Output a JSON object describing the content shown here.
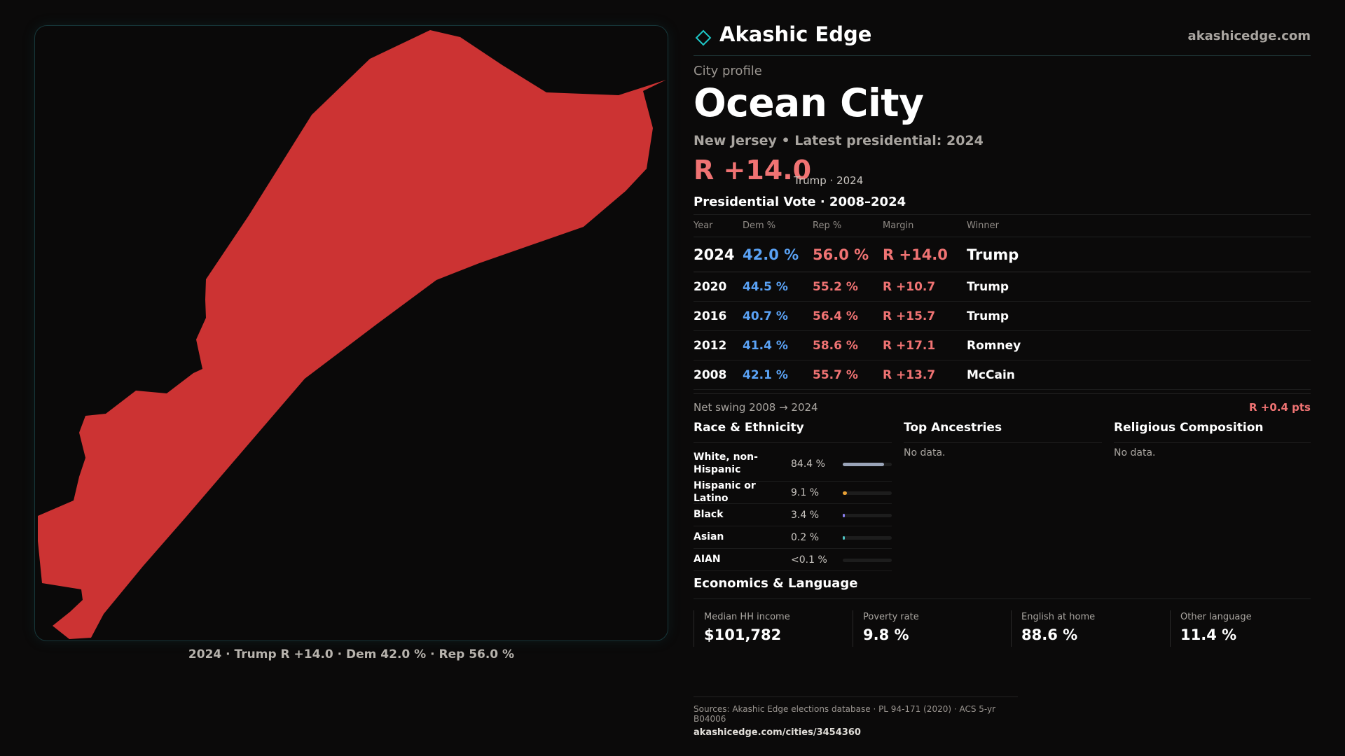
{
  "brand": {
    "name": "Akashic Edge",
    "domain": "akashicedge.com",
    "accent": "#1ec8c8"
  },
  "profile": {
    "eyebrow": "City profile",
    "city": "Ocean City",
    "subtitle": "New Jersey • Latest presidential: 2024",
    "headline_margin": "R +14.0",
    "headline_note": "Trump · 2024"
  },
  "map": {
    "fill": "#cc3333",
    "caption": "2024 · Trump R +14.0 · Dem 42.0 % · Rep 56.0 %"
  },
  "vote": {
    "title": "Presidential Vote · 2008–2024",
    "headers": {
      "year": "Year",
      "dem": "Dem %",
      "rep": "Rep %",
      "margin": "Margin",
      "winner": "Winner"
    },
    "rows": [
      {
        "year": "2024",
        "dem": "42.0 %",
        "rep": "56.0 %",
        "margin": "R +14.0",
        "winner": "Trump"
      },
      {
        "year": "2020",
        "dem": "44.5 %",
        "rep": "55.2 %",
        "margin": "R +10.7",
        "winner": "Trump"
      },
      {
        "year": "2016",
        "dem": "40.7 %",
        "rep": "56.4 %",
        "margin": "R +15.7",
        "winner": "Trump"
      },
      {
        "year": "2012",
        "dem": "41.4 %",
        "rep": "58.6 %",
        "margin": "R +17.1",
        "winner": "Romney"
      },
      {
        "year": "2008",
        "dem": "42.1 %",
        "rep": "55.7 %",
        "margin": "R +13.7",
        "winner": "McCain"
      }
    ],
    "swing_label": "Net swing 2008 → 2024",
    "swing_value": "R +0.4 pts"
  },
  "race": {
    "title": "Race & Ethnicity",
    "rows": [
      {
        "label": "White, non-Hispanic",
        "pct": "84.4 %",
        "share": 0.844,
        "color": "#9aa4b8"
      },
      {
        "label": "Hispanic or Latino",
        "pct": "9.1 %",
        "share": 0.091,
        "color": "#e8a035"
      },
      {
        "label": "Black",
        "pct": "3.4 %",
        "share": 0.034,
        "color": "#8a7ff0"
      },
      {
        "label": "Asian",
        "pct": "0.2 %",
        "share": 0.002,
        "color": "#4fc3c3"
      },
      {
        "label": "AIAN",
        "pct": "<0.1 %",
        "share": 0.0,
        "color": "#7fbf6a"
      }
    ]
  },
  "ancestries": {
    "title": "Top Ancestries",
    "empty": "No data."
  },
  "religion": {
    "title": "Religious Composition",
    "empty": "No data."
  },
  "economics": {
    "title": "Economics & Language",
    "items": [
      {
        "label": "Median HH income",
        "value": "$101,782"
      },
      {
        "label": "Poverty rate",
        "value": "9.8 %"
      },
      {
        "label": "English at home",
        "value": "88.6 %"
      },
      {
        "label": "Other language",
        "value": "11.4 %"
      }
    ]
  },
  "sources": {
    "line": "Sources: Akashic Edge elections database · PL 94-171 (2020) · ACS 5-yr B04006",
    "url": "akashicedge.com/cities/3454360"
  }
}
